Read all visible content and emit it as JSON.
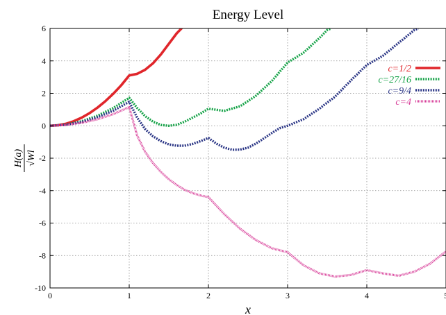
{
  "chart_data": {
    "type": "line",
    "title": "Energy Level",
    "xlabel": "x",
    "ylabel_numerator": "H(a)",
    "ylabel_denominator": "√Wl",
    "xlim": [
      0,
      5
    ],
    "ylim": [
      -10,
      6
    ],
    "xticks": [
      "0",
      "1",
      "2",
      "3",
      "4",
      "5"
    ],
    "yticks": [
      "-10",
      "-8",
      "-6",
      "-4",
      "-2",
      "0",
      "2",
      "4",
      "6"
    ],
    "grid": true,
    "legend_position": "top-right",
    "series": [
      {
        "name": "c=1/2",
        "color": "#e0262b",
        "style": "solid",
        "x": [
          0,
          0.1,
          0.2,
          0.3,
          0.4,
          0.5,
          0.6,
          0.7,
          0.8,
          0.9,
          1.0,
          1.1,
          1.2,
          1.3,
          1.4,
          1.5,
          1.6,
          1.66
        ],
        "y": [
          0,
          0.03,
          0.12,
          0.28,
          0.5,
          0.78,
          1.12,
          1.52,
          1.98,
          2.5,
          3.1,
          3.2,
          3.45,
          3.85,
          4.4,
          5.05,
          5.7,
          6.0
        ]
      },
      {
        "name": "c=27/16",
        "color": "#16a348",
        "style": "dotted",
        "x": [
          0,
          0.2,
          0.4,
          0.6,
          0.8,
          1.0,
          1.1,
          1.2,
          1.3,
          1.4,
          1.5,
          1.6,
          1.7,
          1.8,
          1.9,
          2.0,
          2.2,
          2.4,
          2.6,
          2.8,
          3.0,
          3.2,
          3.4,
          3.5,
          3.55
        ],
        "y": [
          0,
          0.07,
          0.28,
          0.62,
          1.1,
          1.72,
          1.1,
          0.6,
          0.25,
          0.05,
          0.0,
          0.06,
          0.25,
          0.5,
          0.75,
          1.05,
          0.92,
          1.2,
          1.85,
          2.75,
          3.9,
          4.5,
          5.4,
          5.9,
          6.0
        ]
      },
      {
        "name": "c=9/4",
        "color": "#2a3585",
        "style": "dotted",
        "x": [
          0,
          0.2,
          0.4,
          0.6,
          0.8,
          1.0,
          1.1,
          1.2,
          1.3,
          1.4,
          1.5,
          1.6,
          1.7,
          1.8,
          1.9,
          2.0,
          2.1,
          2.2,
          2.3,
          2.4,
          2.5,
          2.6,
          2.7,
          2.8,
          2.9,
          3.0,
          3.2,
          3.4,
          3.6,
          3.8,
          4.0,
          4.2,
          4.4,
          4.6,
          4.65
        ],
        "y": [
          0,
          0.06,
          0.23,
          0.53,
          0.93,
          1.48,
          0.5,
          -0.2,
          -0.65,
          -0.95,
          -1.15,
          -1.23,
          -1.23,
          -1.12,
          -0.95,
          -0.75,
          -1.1,
          -1.35,
          -1.48,
          -1.47,
          -1.35,
          -1.1,
          -0.78,
          -0.45,
          -0.15,
          0.0,
          0.4,
          1.05,
          1.8,
          2.8,
          3.75,
          4.3,
          5.1,
          5.9,
          6.0
        ]
      },
      {
        "name": "c=4",
        "color": "#d8409a",
        "style": "dashed",
        "x": [
          0,
          0.2,
          0.4,
          0.6,
          0.8,
          1.0,
          1.1,
          1.2,
          1.3,
          1.4,
          1.5,
          1.6,
          1.7,
          1.8,
          1.9,
          2.0,
          2.2,
          2.4,
          2.6,
          2.8,
          3.0,
          3.2,
          3.4,
          3.6,
          3.8,
          4.0,
          4.2,
          4.4,
          4.6,
          4.8,
          5.0
        ],
        "y": [
          0,
          0.05,
          0.18,
          0.4,
          0.72,
          1.15,
          -0.6,
          -1.6,
          -2.3,
          -2.85,
          -3.3,
          -3.65,
          -3.95,
          -4.15,
          -4.3,
          -4.4,
          -5.45,
          -6.35,
          -7.05,
          -7.55,
          -7.8,
          -8.6,
          -9.1,
          -9.3,
          -9.2,
          -8.9,
          -9.1,
          -9.25,
          -9.0,
          -8.5,
          -7.75
        ]
      }
    ]
  }
}
